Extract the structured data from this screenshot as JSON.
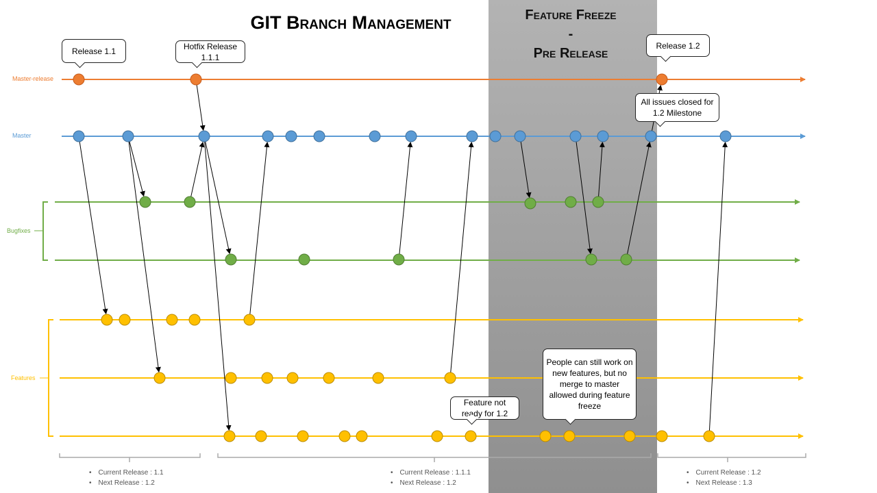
{
  "title": "GIT Branch Management",
  "freeze": {
    "line1": "Feature Freeze",
    "line2": "-",
    "line3": "Pre Release"
  },
  "branches": {
    "master_release": {
      "label": "Master-release",
      "color": "#ED7D31"
    },
    "master": {
      "label": "Master",
      "color": "#5B9BD5"
    },
    "bugfixes": {
      "label": "Bugfixes",
      "color": "#70AD47"
    },
    "features": {
      "label": "Features",
      "color": "#FFC000"
    }
  },
  "callouts": {
    "release_11": "Release 1.1",
    "hotfix": "Hotfix Release 1.1.1",
    "release_12": "Release 1.2",
    "all_issues": "All issues closed for 1.2 Milestone",
    "feature_not_ready": "Feature not ready for 1.2",
    "people_can": "People can still work on new features, but no merge to master allowed during feature freeze"
  },
  "phases": [
    {
      "current": "Current Release : 1.1",
      "next": "Next Release : 1.2"
    },
    {
      "current": "Current Release : 1.1.1",
      "next": "Next Release : 1.2"
    },
    {
      "current": "Current Release : 1.2",
      "next": "Next Release : 1.3"
    }
  ]
}
